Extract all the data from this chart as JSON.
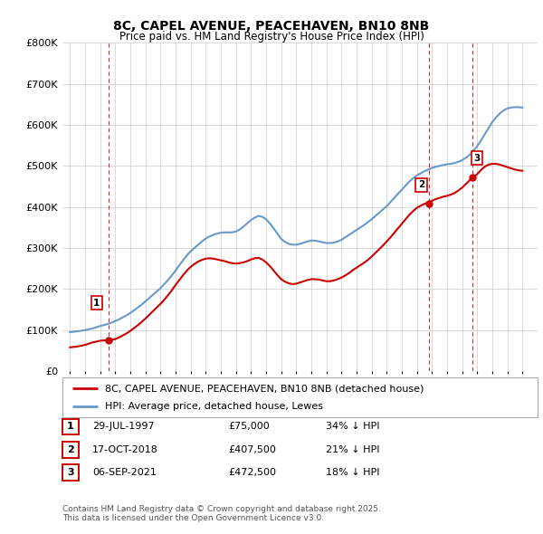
{
  "title_line1": "8C, CAPEL AVENUE, PEACEHAVEN, BN10 8NB",
  "title_line2": "Price paid vs. HM Land Registry's House Price Index (HPI)",
  "background_color": "#ffffff",
  "grid_color": "#cccccc",
  "hpi_color": "#6699cc",
  "sale_color": "#cc0000",
  "vline_color": "#cc0000",
  "sale_points": [
    {
      "date_num": 1997.57,
      "price": 75000,
      "label": "1"
    },
    {
      "date_num": 2018.79,
      "price": 407500,
      "label": "2"
    },
    {
      "date_num": 2021.68,
      "price": 472500,
      "label": "3"
    }
  ],
  "legend_entry1": "8C, CAPEL AVENUE, PEACEHAVEN, BN10 8NB (detached house)",
  "legend_entry2": "HPI: Average price, detached house, Lewes",
  "table_rows": [
    {
      "num": "1",
      "date": "29-JUL-1997",
      "price": "£75,000",
      "note": "34% ↓ HPI"
    },
    {
      "num": "2",
      "date": "17-OCT-2018",
      "price": "£407,500",
      "note": "21% ↓ HPI"
    },
    {
      "num": "3",
      "date": "06-SEP-2021",
      "price": "£472,500",
      "note": "18% ↓ HPI"
    }
  ],
  "footer": "Contains HM Land Registry data © Crown copyright and database right 2025.\nThis data is licensed under the Open Government Licence v3.0.",
  "xlim": [
    1994.5,
    2026.0
  ],
  "ylim": [
    0,
    800000
  ],
  "years_hpi": [
    1995.0,
    1995.25,
    1995.5,
    1995.75,
    1996.0,
    1996.25,
    1996.5,
    1996.75,
    1997.0,
    1997.25,
    1997.5,
    1997.75,
    1998.0,
    1998.25,
    1998.5,
    1998.75,
    1999.0,
    1999.25,
    1999.5,
    1999.75,
    2000.0,
    2000.25,
    2000.5,
    2000.75,
    2001.0,
    2001.25,
    2001.5,
    2001.75,
    2002.0,
    2002.25,
    2002.5,
    2002.75,
    2003.0,
    2003.25,
    2003.5,
    2003.75,
    2004.0,
    2004.25,
    2004.5,
    2004.75,
    2005.0,
    2005.25,
    2005.5,
    2005.75,
    2006.0,
    2006.25,
    2006.5,
    2006.75,
    2007.0,
    2007.25,
    2007.5,
    2007.75,
    2008.0,
    2008.25,
    2008.5,
    2008.75,
    2009.0,
    2009.25,
    2009.5,
    2009.75,
    2010.0,
    2010.25,
    2010.5,
    2010.75,
    2011.0,
    2011.25,
    2011.5,
    2011.75,
    2012.0,
    2012.25,
    2012.5,
    2012.75,
    2013.0,
    2013.25,
    2013.5,
    2013.75,
    2014.0,
    2014.25,
    2014.5,
    2014.75,
    2015.0,
    2015.25,
    2015.5,
    2015.75,
    2016.0,
    2016.25,
    2016.5,
    2016.75,
    2017.0,
    2017.25,
    2017.5,
    2017.75,
    2018.0,
    2018.25,
    2018.5,
    2018.75,
    2019.0,
    2019.25,
    2019.5,
    2019.75,
    2020.0,
    2020.25,
    2020.5,
    2020.75,
    2021.0,
    2021.25,
    2021.5,
    2021.75,
    2022.0,
    2022.25,
    2022.5,
    2022.75,
    2023.0,
    2023.25,
    2023.5,
    2023.75,
    2024.0,
    2024.25,
    2024.5,
    2024.75,
    2025.0
  ],
  "hpi_values": [
    95000,
    96000,
    97000,
    98500,
    100000,
    102000,
    104000,
    107000,
    110000,
    112000,
    115000,
    118000,
    122000,
    126000,
    131000,
    136000,
    142000,
    148000,
    155000,
    162000,
    170000,
    178000,
    186000,
    194000,
    202000,
    212000,
    222000,
    233000,
    245000,
    258000,
    270000,
    282000,
    292000,
    300000,
    308000,
    316000,
    323000,
    328000,
    332000,
    335000,
    337000,
    338000,
    338000,
    338000,
    340000,
    345000,
    352000,
    360000,
    368000,
    374000,
    378000,
    376000,
    370000,
    360000,
    348000,
    335000,
    322000,
    315000,
    310000,
    308000,
    308000,
    310000,
    313000,
    316000,
    318000,
    318000,
    316000,
    314000,
    312000,
    312000,
    313000,
    316000,
    320000,
    326000,
    332000,
    338000,
    344000,
    350000,
    356000,
    363000,
    370000,
    378000,
    386000,
    394000,
    402000,
    412000,
    422000,
    432000,
    442000,
    452000,
    462000,
    470000,
    477000,
    482000,
    487000,
    491000,
    495000,
    498000,
    500000,
    502000,
    504000,
    505000,
    507000,
    510000,
    514000,
    520000,
    527000,
    537000,
    548000,
    562000,
    577000,
    592000,
    607000,
    618000,
    628000,
    635000,
    640000,
    642000,
    643000,
    643000,
    642000
  ],
  "years_sale": [
    1995.0,
    1995.25,
    1995.5,
    1995.75,
    1996.0,
    1996.25,
    1996.5,
    1996.75,
    1997.0,
    1997.25,
    1997.5,
    1997.75,
    1998.0,
    1998.25,
    1998.5,
    1998.75,
    1999.0,
    1999.25,
    1999.5,
    1999.75,
    2000.0,
    2000.25,
    2000.5,
    2000.75,
    2001.0,
    2001.25,
    2001.5,
    2001.75,
    2002.0,
    2002.25,
    2002.5,
    2002.75,
    2003.0,
    2003.25,
    2003.5,
    2003.75,
    2004.0,
    2004.25,
    2004.5,
    2004.75,
    2005.0,
    2005.25,
    2005.5,
    2005.75,
    2006.0,
    2006.25,
    2006.5,
    2006.75,
    2007.0,
    2007.25,
    2007.5,
    2007.75,
    2008.0,
    2008.25,
    2008.5,
    2008.75,
    2009.0,
    2009.25,
    2009.5,
    2009.75,
    2010.0,
    2010.25,
    2010.5,
    2010.75,
    2011.0,
    2011.25,
    2011.5,
    2011.75,
    2012.0,
    2012.25,
    2012.5,
    2012.75,
    2013.0,
    2013.25,
    2013.5,
    2013.75,
    2014.0,
    2014.25,
    2014.5,
    2014.75,
    2015.0,
    2015.25,
    2015.5,
    2015.75,
    2016.0,
    2016.25,
    2016.5,
    2016.75,
    2017.0,
    2017.25,
    2017.5,
    2017.75,
    2018.0,
    2018.25,
    2018.5,
    2018.75,
    2019.0,
    2019.25,
    2019.5,
    2019.75,
    2020.0,
    2020.25,
    2020.5,
    2020.75,
    2021.0,
    2021.25,
    2021.5,
    2021.75,
    2022.0,
    2022.25,
    2022.5,
    2022.75,
    2023.0,
    2023.25,
    2023.5,
    2023.75,
    2024.0,
    2024.25,
    2024.5,
    2024.75,
    2025.0
  ],
  "sale_values": [
    58000,
    59000,
    60000,
    62000,
    64000,
    67000,
    70000,
    72000,
    74000,
    75000,
    75000,
    76000,
    78000,
    82000,
    87000,
    92000,
    98000,
    105000,
    112000,
    120000,
    128000,
    137000,
    146000,
    155000,
    164000,
    174000,
    185000,
    197000,
    210000,
    222000,
    234000,
    245000,
    254000,
    261000,
    267000,
    271000,
    274000,
    275000,
    274000,
    272000,
    270000,
    268000,
    265000,
    263000,
    262000,
    263000,
    265000,
    268000,
    272000,
    275000,
    276000,
    272000,
    265000,
    256000,
    245000,
    234000,
    224000,
    218000,
    214000,
    212000,
    213000,
    216000,
    219000,
    222000,
    224000,
    224000,
    223000,
    221000,
    219000,
    219000,
    221000,
    224000,
    228000,
    233000,
    239000,
    246000,
    252000,
    258000,
    264000,
    271000,
    279000,
    288000,
    297000,
    306000,
    316000,
    326000,
    337000,
    348000,
    359000,
    370000,
    381000,
    390000,
    398000,
    403000,
    407500,
    411000,
    415000,
    419000,
    422000,
    425000,
    427000,
    430000,
    434000,
    440000,
    447000,
    456000,
    465000,
    472500,
    480000,
    490000,
    498000,
    503000,
    505000,
    505000,
    503000,
    500000,
    497000,
    494000,
    491000,
    489000,
    488000
  ]
}
